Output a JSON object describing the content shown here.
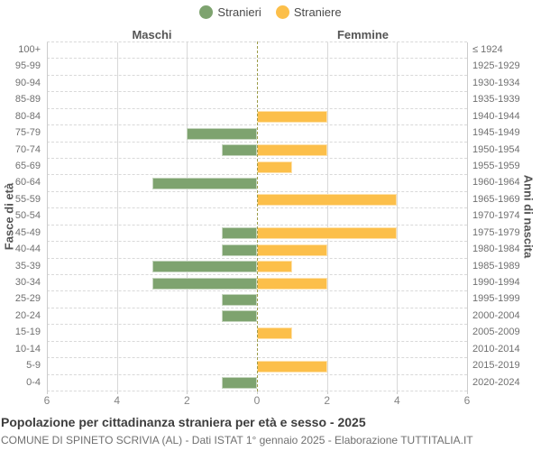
{
  "legend": {
    "items": [
      {
        "label": "Stranieri",
        "color": "#7EA36F"
      },
      {
        "label": "Straniere",
        "color": "#FCBF4A"
      }
    ]
  },
  "headers": {
    "left": "Maschi",
    "right": "Femmine"
  },
  "axis_titles": {
    "left": "Fasce di età",
    "right": "Anni di nascita"
  },
  "title": "Popolazione per cittadinanza straniera per età e sesso - 2025",
  "subtitle": "COMUNE DI SPINETO SCRIVIA (AL) - Dati ISTAT 1° gennaio 2025 - Elaborazione TUTTITALIA.IT",
  "chart_data": {
    "type": "bar",
    "variant": "population-pyramid",
    "age_groups": [
      "100+",
      "95-99",
      "90-94",
      "85-89",
      "80-84",
      "75-79",
      "70-74",
      "65-69",
      "60-64",
      "55-59",
      "50-54",
      "45-49",
      "40-44",
      "35-39",
      "30-34",
      "25-29",
      "20-24",
      "15-19",
      "10-14",
      "5-9",
      "0-4"
    ],
    "birth_years": [
      "≤ 1924",
      "1925-1929",
      "1930-1934",
      "1935-1939",
      "1940-1944",
      "1945-1949",
      "1950-1954",
      "1955-1959",
      "1960-1964",
      "1965-1969",
      "1970-1974",
      "1975-1979",
      "1980-1984",
      "1985-1989",
      "1990-1994",
      "1995-1999",
      "2000-2004",
      "2005-2009",
      "2010-2014",
      "2015-2019",
      "2020-2024"
    ],
    "series": [
      {
        "name": "Stranieri",
        "side": "left",
        "color": "#7EA36F",
        "values": [
          0,
          0,
          0,
          0,
          0,
          2,
          1,
          0,
          3,
          0,
          0,
          1,
          1,
          3,
          3,
          1,
          1,
          0,
          0,
          0,
          1
        ]
      },
      {
        "name": "Straniere",
        "side": "right",
        "color": "#FCBF4A",
        "values": [
          0,
          0,
          0,
          0,
          2,
          0,
          2,
          1,
          0,
          4,
          0,
          4,
          2,
          1,
          2,
          0,
          0,
          1,
          0,
          2,
          0
        ]
      }
    ],
    "x_tick_labels": [
      "6",
      "4",
      "2",
      "0",
      "2",
      "4",
      "6"
    ],
    "x_max_each_side": 6,
    "grid": {
      "horizontal": "dashed",
      "vertical": "solid",
      "zero_line_color": "#9c9c49"
    },
    "legend_position": "top"
  }
}
